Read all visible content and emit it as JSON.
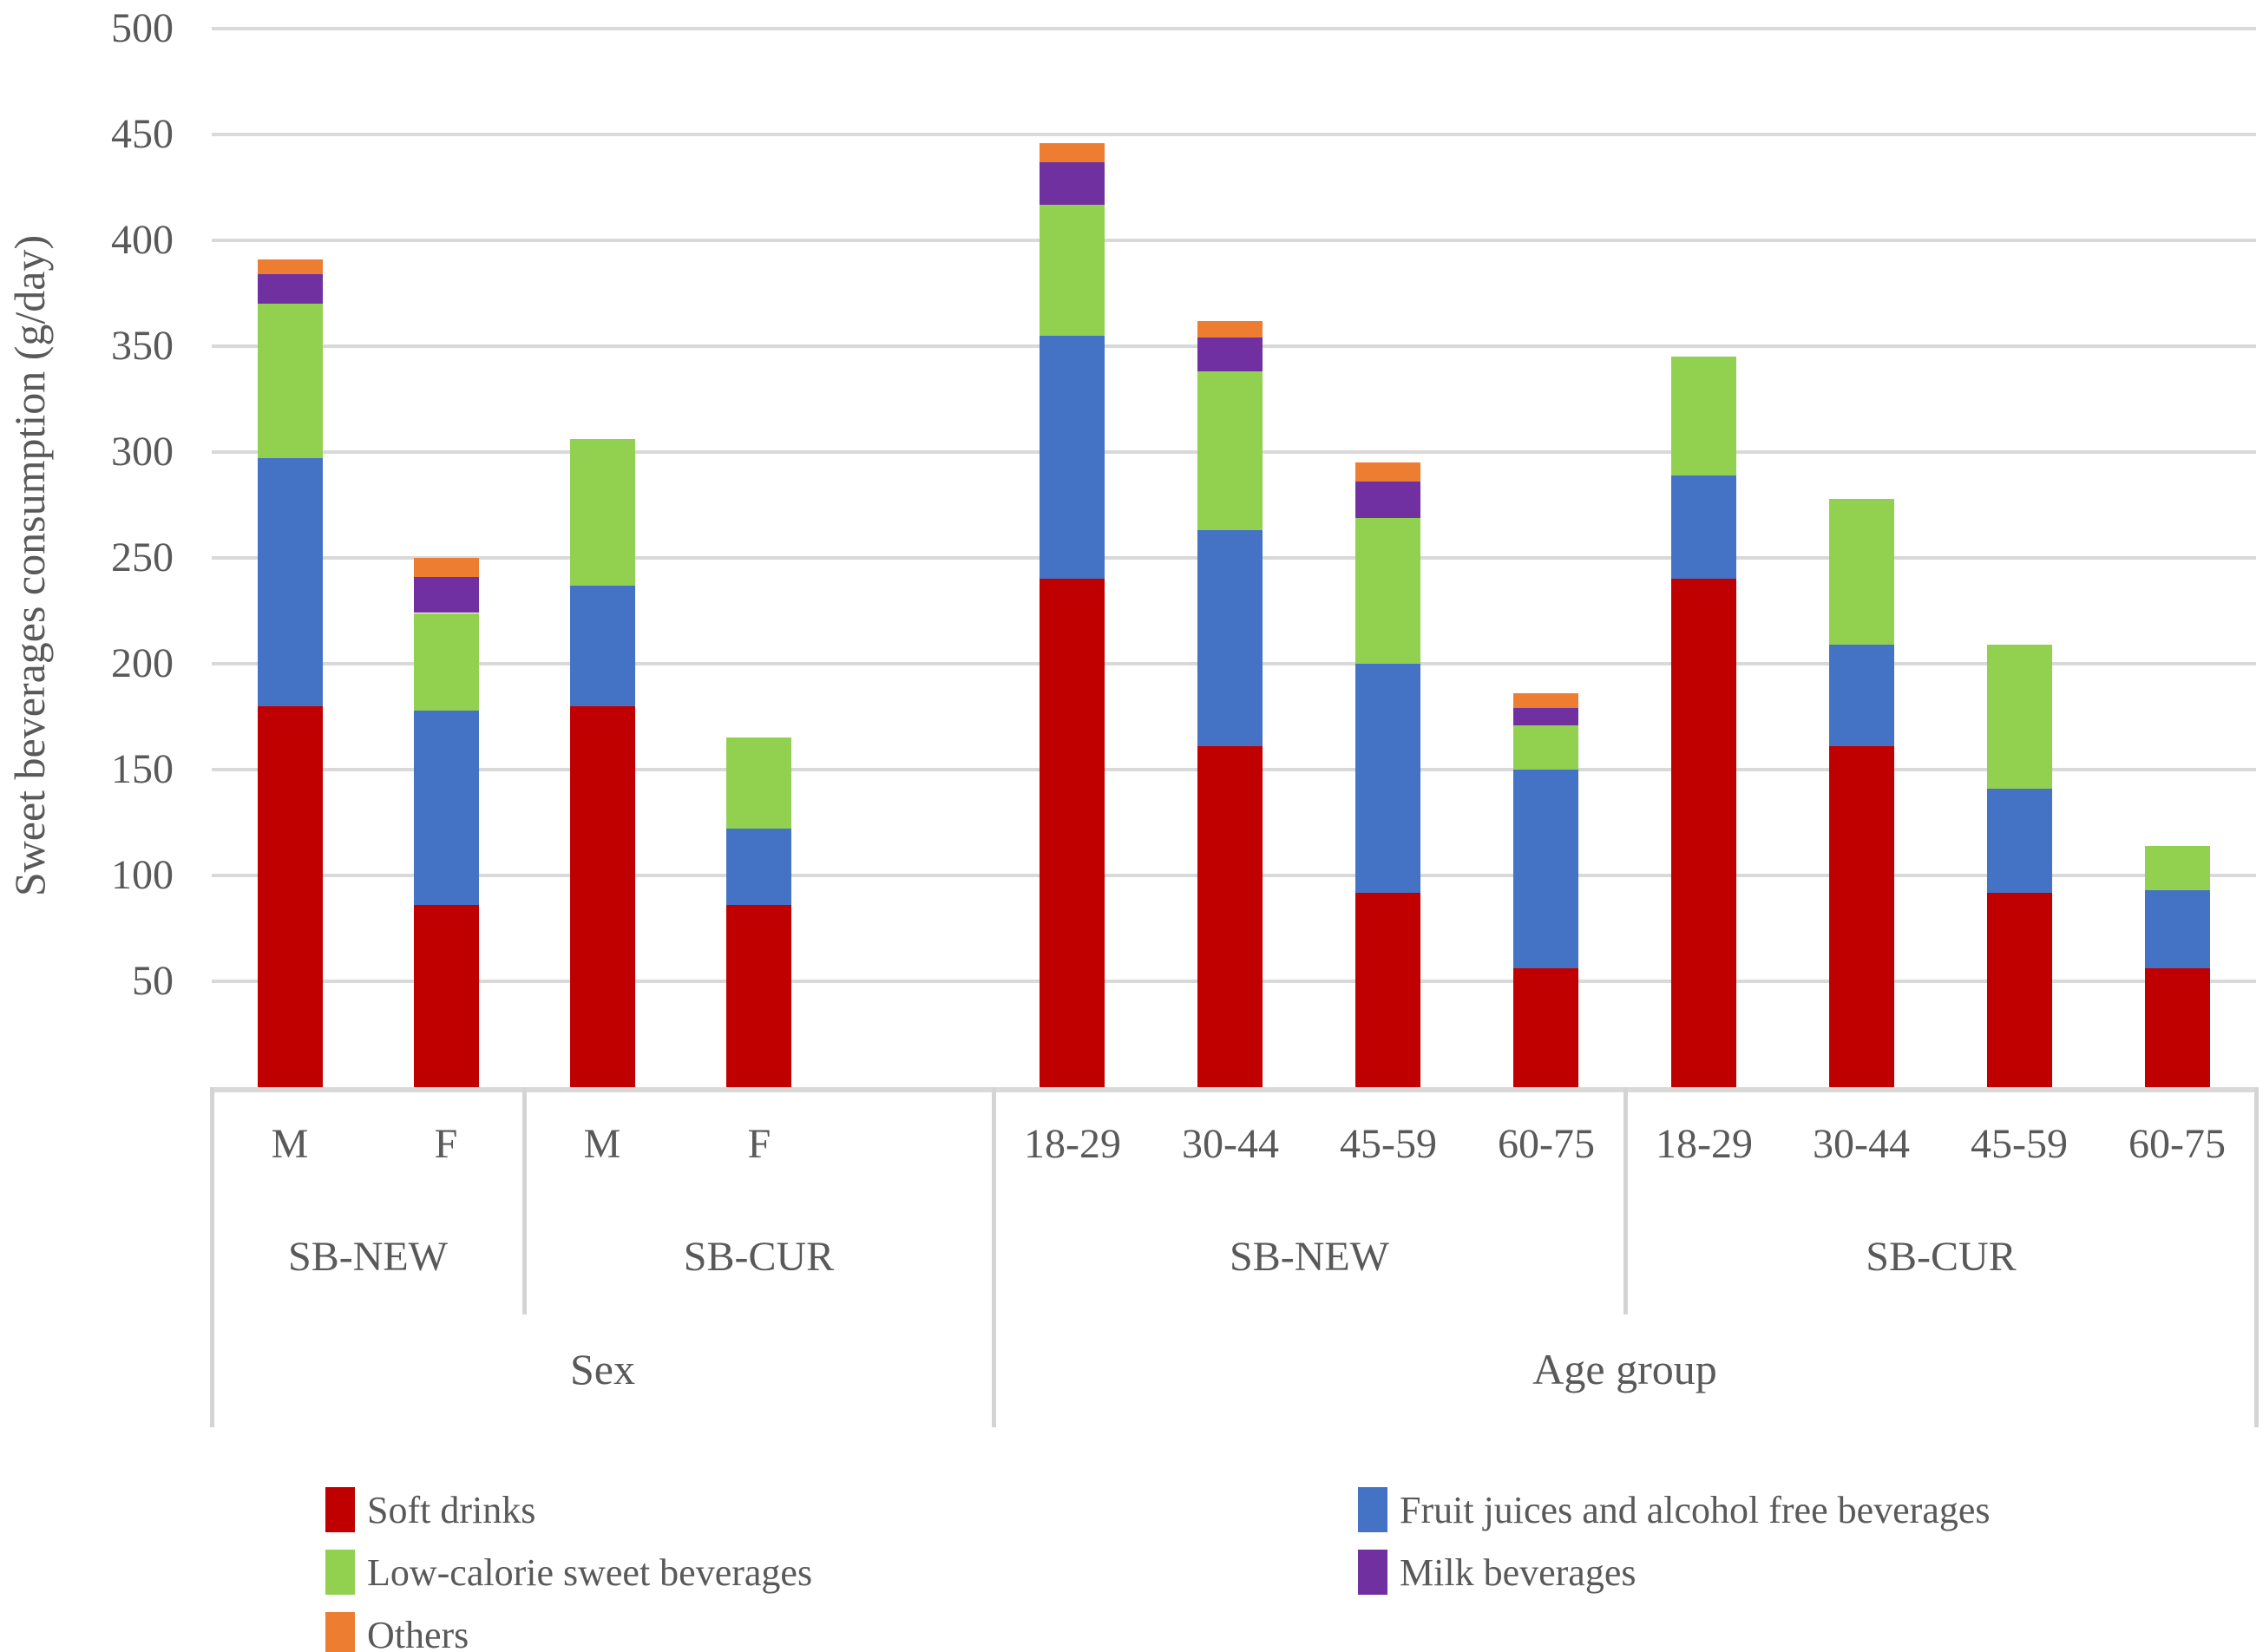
{
  "chart_data": {
    "type": "bar",
    "stacked": true,
    "y_axis": {
      "label": "Sweet beverages consumption (g/day)",
      "min": 0,
      "max": 500,
      "tick_step": 50,
      "ticks": [
        500,
        450,
        400,
        350,
        300,
        250,
        200,
        150,
        100,
        50
      ]
    },
    "grid": true,
    "series_order": [
      "soft_drinks",
      "fruit_juices",
      "low_calorie",
      "milk",
      "others"
    ],
    "series": {
      "soft_drinks": {
        "label": "Soft drinks",
        "color": "#c00000"
      },
      "fruit_juices": {
        "label": "Fruit juices and alcohol free beverages",
        "color": "#4472c4"
      },
      "low_calorie": {
        "label": "Low-calorie sweet beverages",
        "color": "#92d050"
      },
      "milk": {
        "label": "Milk beverages",
        "color": "#7030a0"
      },
      "others": {
        "label": "Others",
        "color": "#ed7d31"
      }
    },
    "sections": [
      {
        "label": "Sex",
        "groups": [
          {
            "label": "SB-NEW",
            "bars": [
              {
                "label": "M",
                "values": {
                  "soft_drinks": 180,
                  "fruit_juices": 117,
                  "low_calorie": 73,
                  "milk": 14,
                  "others": 7
                }
              },
              {
                "label": "F",
                "values": {
                  "soft_drinks": 86,
                  "fruit_juices": 92,
                  "low_calorie": 46,
                  "milk": 17,
                  "others": 9
                }
              }
            ]
          },
          {
            "label": "SB-CUR",
            "bars": [
              {
                "label": "M",
                "values": {
                  "soft_drinks": 180,
                  "fruit_juices": 57,
                  "low_calorie": 69,
                  "milk": 0,
                  "others": 0
                }
              },
              {
                "label": "F",
                "values": {
                  "soft_drinks": 86,
                  "fruit_juices": 36,
                  "low_calorie": 43,
                  "milk": 0,
                  "others": 0
                }
              }
            ]
          }
        ]
      },
      {
        "label": "Age group",
        "groups": [
          {
            "label": "SB-NEW",
            "bars": [
              {
                "label": "18-29",
                "values": {
                  "soft_drinks": 240,
                  "fruit_juices": 115,
                  "low_calorie": 62,
                  "milk": 20,
                  "others": 9
                }
              },
              {
                "label": "30-44",
                "values": {
                  "soft_drinks": 161,
                  "fruit_juices": 102,
                  "low_calorie": 75,
                  "milk": 16,
                  "others": 8
                }
              },
              {
                "label": "45-59",
                "values": {
                  "soft_drinks": 92,
                  "fruit_juices": 108,
                  "low_calorie": 69,
                  "milk": 17,
                  "others": 9
                }
              },
              {
                "label": "60-75",
                "values": {
                  "soft_drinks": 56,
                  "fruit_juices": 94,
                  "low_calorie": 21,
                  "milk": 8,
                  "others": 7
                }
              }
            ]
          },
          {
            "label": "SB-CUR",
            "bars": [
              {
                "label": "18-29",
                "values": {
                  "soft_drinks": 240,
                  "fruit_juices": 49,
                  "low_calorie": 56,
                  "milk": 0,
                  "others": 0
                }
              },
              {
                "label": "30-44",
                "values": {
                  "soft_drinks": 161,
                  "fruit_juices": 48,
                  "low_calorie": 69,
                  "milk": 0,
                  "others": 0
                }
              },
              {
                "label": "45-59",
                "values": {
                  "soft_drinks": 92,
                  "fruit_juices": 49,
                  "low_calorie": 68,
                  "milk": 0,
                  "others": 0
                }
              },
              {
                "label": "60-75",
                "values": {
                  "soft_drinks": 56,
                  "fruit_juices": 37,
                  "low_calorie": 21,
                  "milk": 0,
                  "others": 0
                }
              }
            ]
          }
        ]
      }
    ],
    "legend_columns": [
      [
        "soft_drinks",
        "low_calorie",
        "others"
      ],
      [
        "fruit_juices",
        "milk"
      ]
    ],
    "colors": {
      "gridline": "#d9d9d9",
      "axis_text": "#595959",
      "divider": "#d4d4d4"
    }
  }
}
